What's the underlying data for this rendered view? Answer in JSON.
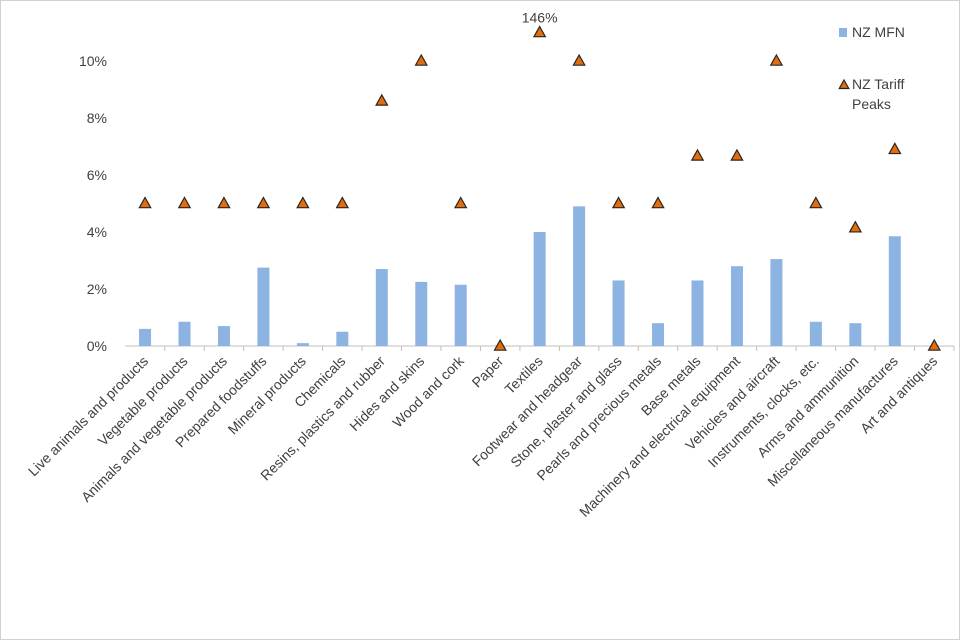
{
  "chart_data": {
    "type": "bar",
    "categories": [
      "Live animals and products",
      "Vegetable products",
      "Animals and vegetable products",
      "Prepared foodstuffs",
      "Mineral products",
      "Chemicals",
      "Resins, plastics and rubber",
      "Hides and skins",
      "Wood and cork",
      "Paper",
      "Textiles",
      "Footwear and headgear",
      "Stone, plaster and glass",
      "Pearls and precious metals",
      "Base metals",
      "Machinery and electrical equipment",
      "Vehicles and aircraft",
      "Instruments, clocks, etc.",
      "Arms and ammunition",
      "Miscellaneous manufactures",
      "Art and antiques"
    ],
    "series": [
      {
        "name": "NZ MFN",
        "type": "bar",
        "color": "#8db3e2",
        "values": [
          0.6,
          0.85,
          0.7,
          2.75,
          0.1,
          0.5,
          2.7,
          2.25,
          2.15,
          0,
          4.0,
          4.9,
          2.3,
          0.8,
          2.3,
          2.8,
          3.05,
          0.85,
          0.8,
          3.85,
          0
        ]
      },
      {
        "name": "NZ Tariff Peaks",
        "type": "scatter",
        "marker": "triangle",
        "color": "#e46c0a",
        "values": [
          5,
          5,
          5,
          5,
          5,
          5,
          8.6,
          10,
          5,
          0,
          146,
          10,
          5,
          5,
          6.67,
          6.67,
          10,
          5,
          4.15,
          6.9,
          0
        ],
        "value_labels": [
          null,
          null,
          null,
          null,
          null,
          null,
          null,
          null,
          null,
          null,
          "146%",
          null,
          null,
          null,
          null,
          null,
          null,
          null,
          null,
          null,
          null
        ]
      }
    ],
    "ylim": [
      0,
      11
    ],
    "yticks": [
      {
        "value": 0,
        "label": "0%"
      },
      {
        "value": 2,
        "label": "2%"
      },
      {
        "value": 4,
        "label": "4%"
      },
      {
        "value": 6,
        "label": "6%"
      },
      {
        "value": 8,
        "label": "8%"
      },
      {
        "value": 10,
        "label": "10%"
      }
    ],
    "grid": false,
    "legend": "top-right"
  }
}
